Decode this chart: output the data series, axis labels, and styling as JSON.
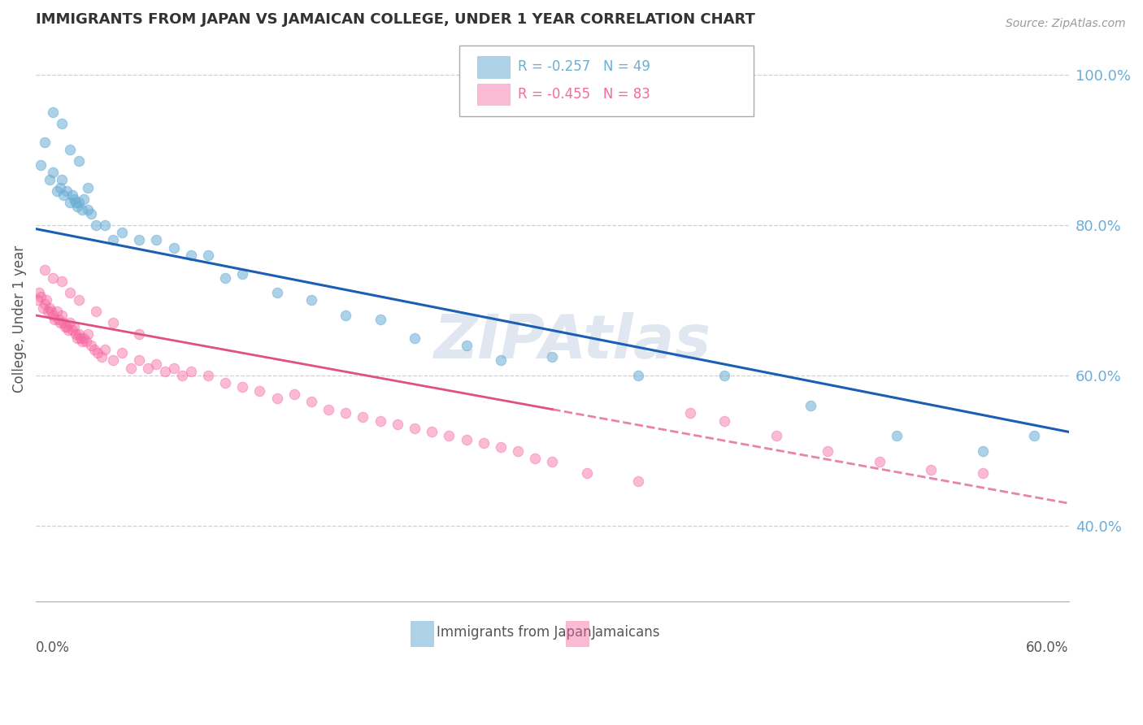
{
  "title": "IMMIGRANTS FROM JAPAN VS JAMAICAN COLLEGE, UNDER 1 YEAR CORRELATION CHART",
  "source": "Source: ZipAtlas.com",
  "ylabel": "College, Under 1 year",
  "right_yticks": [
    40.0,
    60.0,
    80.0,
    100.0
  ],
  "blue_color": "#6baed6",
  "pink_color": "#f768a1",
  "blue_scatter_x": [
    0.3,
    0.5,
    0.8,
    1.0,
    1.2,
    1.4,
    1.5,
    1.6,
    1.8,
    2.0,
    2.1,
    2.2,
    2.3,
    2.4,
    2.5,
    2.7,
    2.8,
    3.0,
    3.2,
    3.5,
    4.0,
    4.5,
    5.0,
    6.0,
    7.0,
    8.0,
    9.0,
    10.0,
    11.0,
    12.0,
    14.0,
    16.0,
    18.0,
    20.0,
    22.0,
    25.0,
    27.0,
    30.0,
    35.0,
    40.0,
    45.0,
    50.0,
    55.0,
    58.0,
    1.0,
    1.5,
    2.0,
    2.5,
    3.0
  ],
  "blue_scatter_y": [
    88.0,
    91.0,
    86.0,
    87.0,
    84.5,
    85.0,
    86.0,
    84.0,
    84.5,
    83.0,
    84.0,
    83.5,
    83.0,
    82.5,
    83.0,
    82.0,
    83.5,
    82.0,
    81.5,
    80.0,
    80.0,
    78.0,
    79.0,
    78.0,
    78.0,
    77.0,
    76.0,
    76.0,
    73.0,
    73.5,
    71.0,
    70.0,
    68.0,
    67.5,
    65.0,
    64.0,
    62.0,
    62.5,
    60.0,
    60.0,
    56.0,
    52.0,
    50.0,
    52.0,
    95.0,
    93.5,
    90.0,
    88.5,
    85.0
  ],
  "pink_scatter_x": [
    0.1,
    0.2,
    0.3,
    0.4,
    0.5,
    0.6,
    0.7,
    0.8,
    0.9,
    1.0,
    1.1,
    1.2,
    1.3,
    1.4,
    1.5,
    1.6,
    1.7,
    1.8,
    1.9,
    2.0,
    2.1,
    2.2,
    2.3,
    2.4,
    2.5,
    2.6,
    2.7,
    2.8,
    2.9,
    3.0,
    3.2,
    3.4,
    3.6,
    3.8,
    4.0,
    4.5,
    5.0,
    5.5,
    6.0,
    6.5,
    7.0,
    7.5,
    8.0,
    8.5,
    9.0,
    10.0,
    11.0,
    12.0,
    13.0,
    14.0,
    15.0,
    16.0,
    17.0,
    18.0,
    19.0,
    20.0,
    21.0,
    22.0,
    23.0,
    24.0,
    25.0,
    26.0,
    27.0,
    28.0,
    29.0,
    30.0,
    32.0,
    35.0,
    38.0,
    40.0,
    43.0,
    46.0,
    49.0,
    52.0,
    55.0,
    0.5,
    1.0,
    1.5,
    2.0,
    2.5,
    3.5,
    4.5,
    6.0
  ],
  "pink_scatter_y": [
    70.0,
    71.0,
    70.5,
    69.0,
    69.5,
    70.0,
    68.5,
    69.0,
    68.5,
    68.0,
    67.5,
    68.5,
    67.5,
    67.0,
    68.0,
    67.0,
    66.5,
    66.5,
    66.0,
    67.0,
    66.0,
    66.5,
    65.5,
    65.0,
    65.5,
    65.0,
    64.5,
    65.0,
    64.5,
    65.5,
    64.0,
    63.5,
    63.0,
    62.5,
    63.5,
    62.0,
    63.0,
    61.0,
    62.0,
    61.0,
    61.5,
    60.5,
    61.0,
    60.0,
    60.5,
    60.0,
    59.0,
    58.5,
    58.0,
    57.0,
    57.5,
    56.5,
    55.5,
    55.0,
    54.5,
    54.0,
    53.5,
    53.0,
    52.5,
    52.0,
    51.5,
    51.0,
    50.5,
    50.0,
    49.0,
    48.5,
    47.0,
    46.0,
    55.0,
    54.0,
    52.0,
    50.0,
    48.5,
    47.5,
    47.0,
    74.0,
    73.0,
    72.5,
    71.0,
    70.0,
    68.5,
    67.0,
    65.5
  ],
  "blue_line_x0": 0.0,
  "blue_line_x1": 60.0,
  "blue_line_y0": 79.5,
  "blue_line_y1": 52.5,
  "pink_line_x0": 0.0,
  "pink_line_x1": 60.0,
  "pink_line_y0": 68.0,
  "pink_line_y1": 43.0,
  "pink_solid_end_x": 30.0,
  "xlim": [
    0.0,
    60.0
  ],
  "ylim": [
    30.0,
    105.0
  ],
  "watermark": "ZIPAtlas",
  "background_color": "#ffffff",
  "grid_color": "#d0d0d0",
  "legend_text_blue": "R = -0.257   N = 49",
  "legend_text_pink": "R = -0.455   N = 83"
}
